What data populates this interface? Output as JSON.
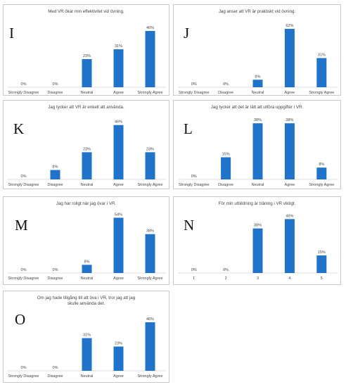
{
  "accent_color": "#1f74c9",
  "chart_data": [
    {
      "type": "bar",
      "letter": "I",
      "title": "Med VR ökar min effektivitet vid övning.",
      "categories": [
        "Strongly Disagree",
        "Disagree",
        "Neutral",
        "Agree",
        "Strongly Agree"
      ],
      "values": [
        0,
        0,
        23,
        31,
        46
      ],
      "value_labels": [
        "0%",
        "0%",
        "23%",
        "31%",
        "46%"
      ],
      "ylim": [
        0,
        50
      ]
    },
    {
      "type": "bar",
      "letter": "J",
      "title": "Jag anser att VR är praktiskt vid övning.",
      "categories": [
        "Strongly Disagree",
        "Disagree",
        "Neutral",
        "Agree",
        "Strongly Agree"
      ],
      "values": [
        0,
        0,
        8,
        62,
        31
      ],
      "value_labels": [
        "0%",
        "0%",
        "8%",
        "62%",
        "31%"
      ],
      "ylim": [
        0,
        65
      ]
    },
    {
      "type": "bar",
      "letter": "K",
      "title": "Jag tycker att VR är enkelt att använda.",
      "categories": [
        "Strongly Disagree",
        "Disagree",
        "Neutral",
        "Agree",
        "Strongly Agree"
      ],
      "values": [
        0,
        8,
        23,
        46,
        23
      ],
      "value_labels": [
        "0%",
        "8%",
        "23%",
        "46%",
        "23%"
      ],
      "ylim": [
        0,
        50
      ]
    },
    {
      "type": "bar",
      "letter": "L",
      "title": "Jag tycker att det är lätt att utföra uppgifter i VR.",
      "categories": [
        "Strongly Disagree",
        "Disagree",
        "Neutral",
        "Agree",
        "Strongly Agree"
      ],
      "values": [
        0,
        15,
        38,
        38,
        8
      ],
      "value_labels": [
        "0%",
        "15%",
        "38%",
        "38%",
        "8%"
      ],
      "ylim": [
        0,
        40
      ]
    },
    {
      "type": "bar",
      "letter": "M",
      "title": "Jag har roligt när jag övar i VR.",
      "categories": [
        "Strongly Disagree",
        "Disagree",
        "Neutral",
        "Agree",
        "Strongly Agree"
      ],
      "values": [
        0,
        0,
        8,
        54,
        38
      ],
      "value_labels": [
        "0%",
        "0%",
        "8%",
        "54%",
        "38%"
      ],
      "ylim": [
        0,
        55
      ]
    },
    {
      "type": "bar",
      "letter": "N",
      "title": "För min utbildning är träning i VR viktigt.",
      "categories": [
        "1",
        "2",
        "3",
        "4",
        "5"
      ],
      "values": [
        0,
        0,
        38,
        46,
        15
      ],
      "value_labels": [
        "0%",
        "0%",
        "38%",
        "46%",
        "15%"
      ],
      "ylim": [
        0,
        48
      ]
    },
    {
      "type": "bar",
      "letter": "O",
      "title": "Om jag hade tillgång till att öva i VR, tror jag att jag skulle använda det.",
      "categories": [
        "Strongly Disagree",
        "Disagree",
        "Neutral",
        "Agree",
        "Strongly Agree"
      ],
      "values": [
        0,
        0,
        31,
        23,
        46
      ],
      "value_labels": [
        "0%",
        "0%",
        "31%",
        "23%",
        "46%"
      ],
      "ylim": [
        0,
        50
      ]
    }
  ]
}
